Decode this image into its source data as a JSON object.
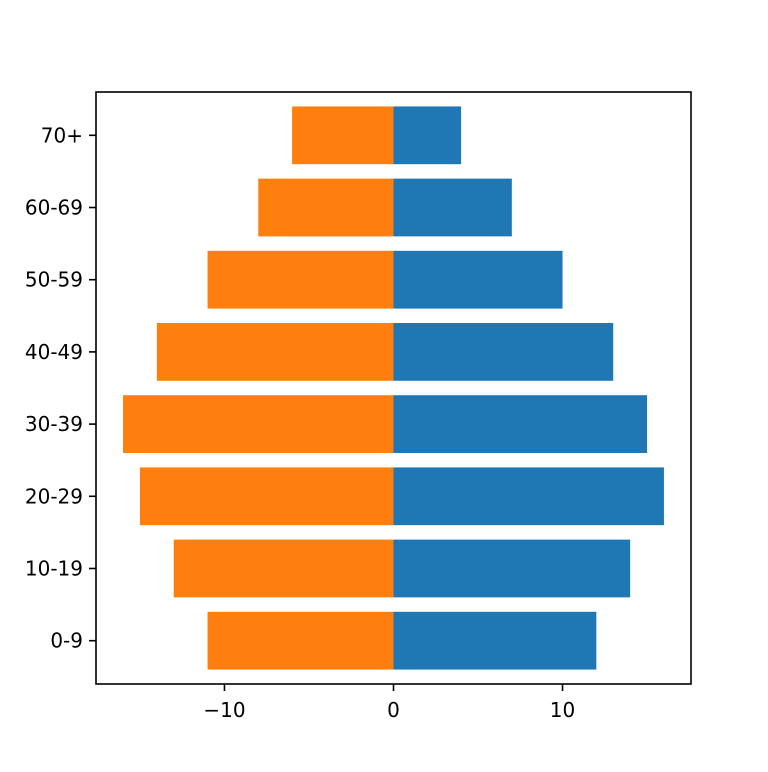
{
  "chart_data": {
    "type": "bar",
    "orientation": "horizontal",
    "layout": "population-pyramid",
    "categories": [
      "0-9",
      "10-19",
      "20-29",
      "30-39",
      "40-49",
      "50-59",
      "60-69",
      "70+"
    ],
    "series": [
      {
        "values": [
          12,
          14,
          16,
          15,
          13,
          10,
          7,
          4
        ],
        "color": "#1f77b4"
      },
      {
        "values": [
          -11,
          -13,
          -15,
          -16,
          -14,
          -11,
          -8,
          -6
        ],
        "color": "#ff7f0e"
      }
    ],
    "xlim": [
      -17.6,
      17.6
    ],
    "x_ticks": [
      -10,
      0,
      10
    ],
    "x_tick_labels": [
      "−10",
      "0",
      "10"
    ],
    "title": "",
    "xlabel": "",
    "ylabel": "",
    "grid": false,
    "legend": "none"
  }
}
